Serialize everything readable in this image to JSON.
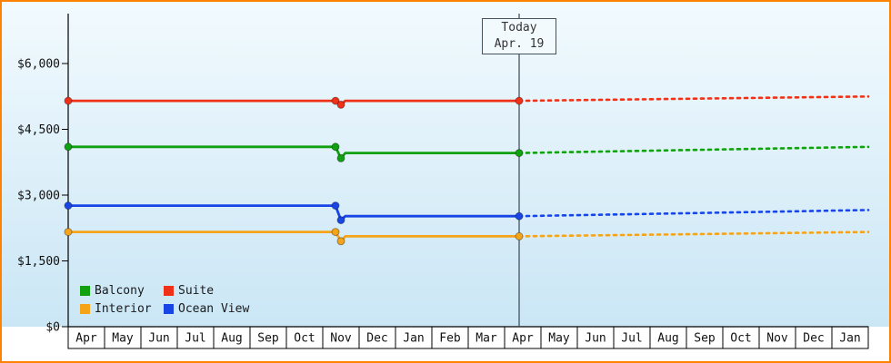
{
  "window": {
    "border_color": "#FF8200"
  },
  "chart_data": {
    "type": "line",
    "background": {
      "top": "#F2FAFE",
      "bottom": "#C6E4F4"
    },
    "grid": "off",
    "legend_position": "bottom-left-inside",
    "today": {
      "label_line1": "Today",
      "label_line2": "Apr. 19",
      "month_position": 12.4
    },
    "x_axis": {
      "months": [
        "Apr",
        "May",
        "Jun",
        "Jul",
        "Aug",
        "Sep",
        "Oct",
        "Nov",
        "Dec",
        "Jan",
        "Feb",
        "Mar",
        "Apr",
        "May",
        "Jun",
        "Jul",
        "Aug",
        "Sep",
        "Oct",
        "Nov",
        "Dec",
        "Jan"
      ]
    },
    "y_axis": {
      "ticks": [
        {
          "label": "$0",
          "value": 0
        },
        {
          "label": "$1,500",
          "value": 1500
        },
        {
          "label": "$3,000",
          "value": 3000
        },
        {
          "label": "$4,500",
          "value": 4500
        },
        {
          "label": "$6,000",
          "value": 6000
        }
      ],
      "ylim": [
        0,
        7150
      ]
    },
    "series": [
      {
        "name": "Suite",
        "color": "#EE3118",
        "solid_points": [
          [
            0,
            5150
          ],
          [
            7.35,
            5150
          ],
          [
            7.5,
            5060
          ],
          [
            7.62,
            5150
          ],
          [
            12.4,
            5150
          ]
        ],
        "dashed_points": [
          [
            12.4,
            5150
          ],
          [
            22,
            5250
          ]
        ],
        "markers": [
          [
            0,
            5150
          ],
          [
            7.35,
            5150
          ],
          [
            7.5,
            5060
          ],
          [
            12.4,
            5150
          ]
        ]
      },
      {
        "name": "Balcony",
        "color": "#10A010",
        "solid_points": [
          [
            0,
            4100
          ],
          [
            7.35,
            4100
          ],
          [
            7.5,
            3840
          ],
          [
            7.62,
            3960
          ],
          [
            12.4,
            3960
          ]
        ],
        "dashed_points": [
          [
            12.4,
            3960
          ],
          [
            22,
            4100
          ]
        ],
        "markers": [
          [
            0,
            4100
          ],
          [
            7.35,
            4100
          ],
          [
            7.5,
            3840
          ],
          [
            12.4,
            3960
          ]
        ]
      },
      {
        "name": "Ocean View",
        "color": "#1845E6",
        "solid_points": [
          [
            0,
            2760
          ],
          [
            7.35,
            2760
          ],
          [
            7.5,
            2430
          ],
          [
            7.62,
            2520
          ],
          [
            12.4,
            2520
          ]
        ],
        "dashed_points": [
          [
            12.4,
            2520
          ],
          [
            22,
            2660
          ]
        ],
        "markers": [
          [
            0,
            2760
          ],
          [
            7.35,
            2760
          ],
          [
            7.5,
            2430
          ],
          [
            12.4,
            2520
          ]
        ]
      },
      {
        "name": "Interior",
        "color": "#F5A41A",
        "solid_points": [
          [
            0,
            2160
          ],
          [
            7.35,
            2160
          ],
          [
            7.5,
            1950
          ],
          [
            7.62,
            2060
          ],
          [
            12.4,
            2060
          ]
        ],
        "dashed_points": [
          [
            12.4,
            2060
          ],
          [
            22,
            2160
          ]
        ],
        "markers": [
          [
            0,
            2160
          ],
          [
            7.35,
            2160
          ],
          [
            7.5,
            1950
          ],
          [
            12.4,
            2060
          ]
        ]
      }
    ],
    "legend_items": [
      {
        "label": "Balcony",
        "series": "Balcony"
      },
      {
        "label": "Suite",
        "series": "Suite"
      },
      {
        "label": "Interior",
        "series": "Interior"
      },
      {
        "label": "Ocean View",
        "series": "Ocean View"
      }
    ]
  }
}
